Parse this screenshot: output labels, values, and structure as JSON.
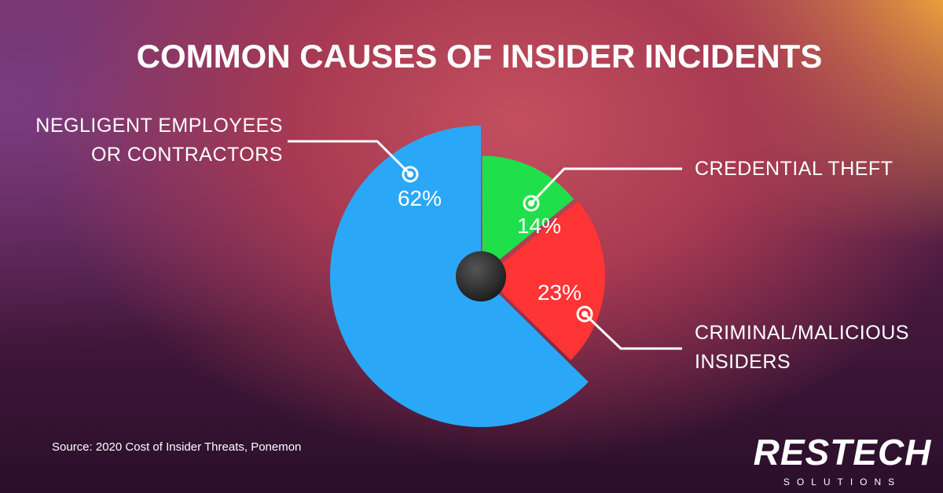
{
  "chart_data": {
    "type": "pie",
    "title": "COMMON CAUSES OF INSIDER INCIDENTS",
    "categories": [
      "CREDENTIAL THEFT",
      "CRIMINAL/MALICIOUS INSIDERS",
      "NEGLIGENT EMPLOYEES OR CONTRACTORS"
    ],
    "values": [
      14,
      23,
      62
    ],
    "value_labels": [
      "14%",
      "23%",
      "62%"
    ],
    "colors": [
      "#1fe04a",
      "#ff3434",
      "#2ba7f7"
    ],
    "source": "Source: 2020 Cost of Insider Threats, Ponemon"
  },
  "logo": {
    "name": "RESTECH",
    "tagline": "SOLUTIONS"
  }
}
